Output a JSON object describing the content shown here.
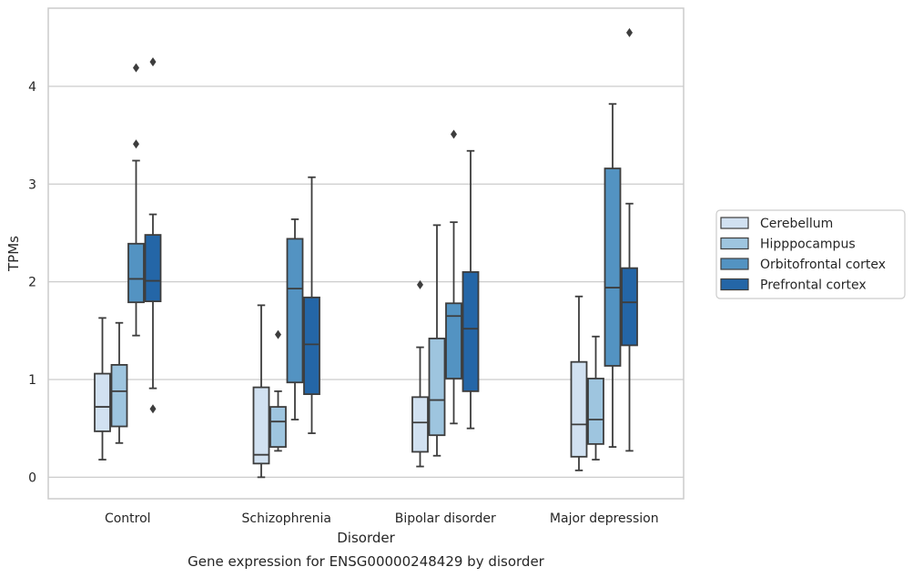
{
  "chart_data": {
    "type": "boxplot",
    "caption": "Gene expression for ENSG00000248429 by disorder",
    "xlabel": "Disorder",
    "ylabel": "TPMs",
    "ylim": [
      -0.22,
      4.8
    ],
    "yticks": [
      0,
      1,
      2,
      3,
      4
    ],
    "grid": "horizontal",
    "legend_position": "right",
    "categories": [
      "Control",
      "Schizophrenia",
      "Bipolar disorder",
      "Major depression"
    ],
    "series": [
      {
        "name": "Cerebellum",
        "color": "#d1e1f1",
        "boxes": [
          {
            "whislo": 0.18,
            "q1": 0.47,
            "med": 0.72,
            "q3": 1.06,
            "whishi": 1.63,
            "fliers": []
          },
          {
            "whislo": 0.0,
            "q1": 0.14,
            "med": 0.23,
            "q3": 0.92,
            "whishi": 1.76,
            "fliers": []
          },
          {
            "whislo": 0.11,
            "q1": 0.26,
            "med": 0.56,
            "q3": 0.82,
            "whishi": 1.33,
            "fliers": [
              1.97
            ]
          },
          {
            "whislo": 0.07,
            "q1": 0.21,
            "med": 0.54,
            "q3": 1.18,
            "whishi": 1.85,
            "fliers": []
          }
        ]
      },
      {
        "name": "Hipppocampus",
        "color": "#9ec5df",
        "boxes": [
          {
            "whislo": 0.35,
            "q1": 0.52,
            "med": 0.88,
            "q3": 1.15,
            "whishi": 1.58,
            "fliers": []
          },
          {
            "whislo": 0.27,
            "q1": 0.31,
            "med": 0.57,
            "q3": 0.72,
            "whishi": 0.88,
            "fliers": [
              1.46
            ]
          },
          {
            "whislo": 0.22,
            "q1": 0.43,
            "med": 0.79,
            "q3": 1.42,
            "whishi": 2.58,
            "fliers": []
          },
          {
            "whislo": 0.18,
            "q1": 0.34,
            "med": 0.59,
            "q3": 1.01,
            "whishi": 1.44,
            "fliers": []
          }
        ]
      },
      {
        "name": "Orbitofrontal cortex",
        "color": "#5393c2",
        "boxes": [
          {
            "whislo": 1.45,
            "q1": 1.79,
            "med": 2.03,
            "q3": 2.39,
            "whishi": 3.24,
            "fliers": [
              3.41,
              4.19
            ]
          },
          {
            "whislo": 0.59,
            "q1": 0.97,
            "med": 1.93,
            "q3": 2.44,
            "whishi": 2.64,
            "fliers": []
          },
          {
            "whislo": 0.55,
            "q1": 1.01,
            "med": 1.65,
            "q3": 1.78,
            "whishi": 2.61,
            "fliers": [
              3.51
            ]
          },
          {
            "whislo": 0.31,
            "q1": 1.14,
            "med": 1.94,
            "q3": 3.16,
            "whishi": 3.82,
            "fliers": []
          }
        ]
      },
      {
        "name": "Prefrontal cortex",
        "color": "#2466a7",
        "boxes": [
          {
            "whislo": 0.91,
            "q1": 1.8,
            "med": 2.01,
            "q3": 2.48,
            "whishi": 2.69,
            "fliers": [
              0.7,
              4.25
            ]
          },
          {
            "whislo": 0.45,
            "q1": 0.85,
            "med": 1.36,
            "q3": 1.84,
            "whishi": 3.07,
            "fliers": []
          },
          {
            "whislo": 0.5,
            "q1": 0.88,
            "med": 1.52,
            "q3": 2.1,
            "whishi": 3.34,
            "fliers": []
          },
          {
            "whislo": 0.27,
            "q1": 1.35,
            "med": 1.79,
            "q3": 2.14,
            "whishi": 2.8,
            "fliers": [
              4.55
            ]
          }
        ]
      }
    ],
    "colors": {
      "line": "#3d3d3d",
      "grid": "#cccccc",
      "frame": "#cccccc",
      "text": "#262626"
    }
  }
}
